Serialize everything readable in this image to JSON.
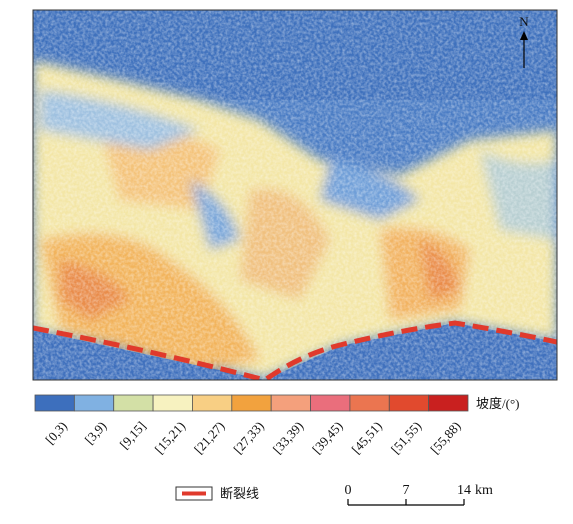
{
  "map": {
    "north": "N",
    "legend": {
      "title": "坡度/(°)",
      "classes": [
        {
          "label": "[0,3)",
          "color": "#3d6fbd"
        },
        {
          "label": "[3,9)",
          "color": "#80b1e2"
        },
        {
          "label": "[9,15]",
          "color": "#d3e0a6"
        },
        {
          "label": "[15,21)",
          "color": "#f7f2c0"
        },
        {
          "label": "[21,27)",
          "color": "#f8cf84"
        },
        {
          "label": "[27,33)",
          "color": "#f2a23e"
        },
        {
          "label": "[33,39)",
          "color": "#f4a07c"
        },
        {
          "label": "[39,45)",
          "color": "#ea6e7c"
        },
        {
          "label": "[45,51)",
          "color": "#eb7550"
        },
        {
          "label": "[51,55)",
          "color": "#e14a2e"
        },
        {
          "label": "[55,88)",
          "color": "#c9201f"
        }
      ]
    },
    "fault_legend": "断裂线",
    "scale_bar": {
      "ticks": [
        0,
        7,
        14
      ],
      "unit": "km"
    }
  }
}
